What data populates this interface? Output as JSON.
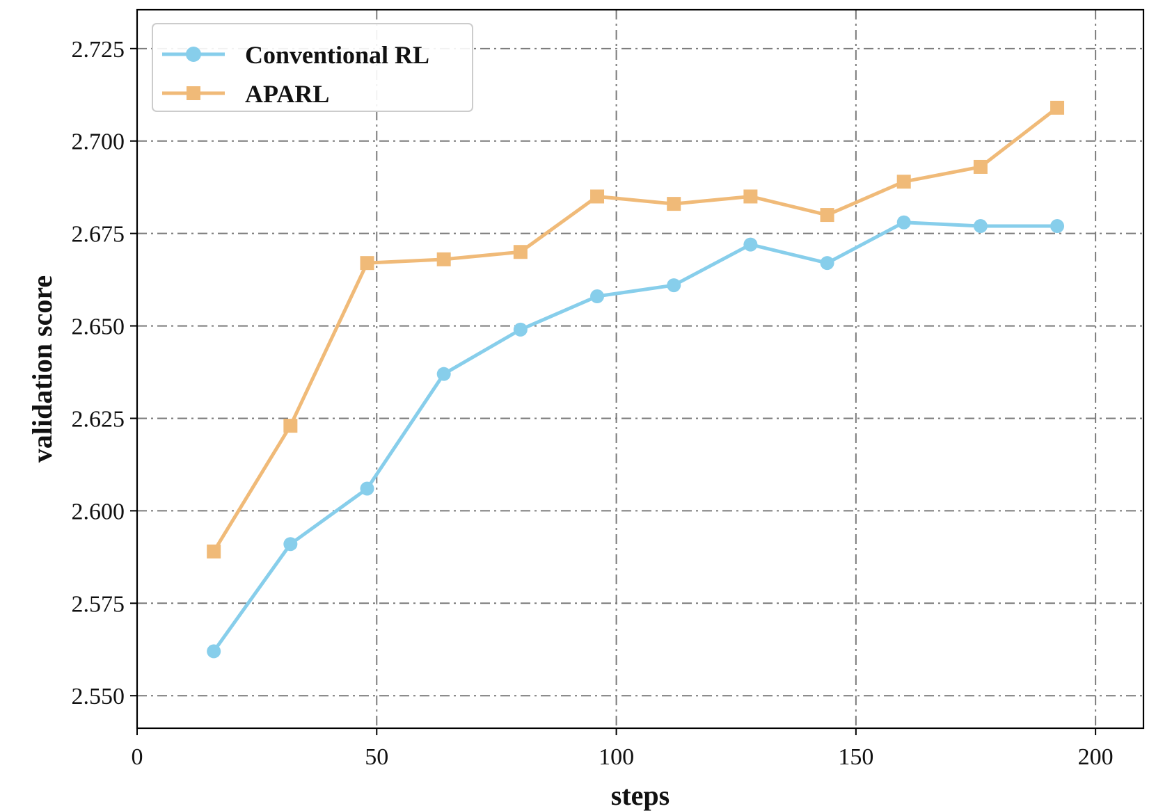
{
  "chart_data": {
    "type": "line",
    "xlabel": "steps",
    "ylabel": "validation score",
    "xlim": [
      0,
      210
    ],
    "ylim": [
      2.5412,
      2.7355
    ],
    "xticks": [
      0,
      50,
      100,
      150,
      200
    ],
    "xtick_labels": [
      "0",
      "50",
      "100",
      "150",
      "200"
    ],
    "yticks": [
      2.55,
      2.575,
      2.6,
      2.625,
      2.65,
      2.675,
      2.7,
      2.725
    ],
    "ytick_labels": [
      "2.550",
      "2.575",
      "2.600",
      "2.625",
      "2.650",
      "2.675",
      "2.700",
      "2.725"
    ],
    "grid": true,
    "legend_position": "top-left",
    "x": [
      16,
      32,
      48,
      64,
      80,
      96,
      112,
      128,
      144,
      160,
      176,
      192
    ],
    "series": [
      {
        "name": "Conventional RL",
        "color": "#87CEEB",
        "marker": "circle",
        "values": [
          2.562,
          2.591,
          2.606,
          2.637,
          2.649,
          2.658,
          2.661,
          2.672,
          2.667,
          2.678,
          2.677,
          2.677
        ]
      },
      {
        "name": "APARL",
        "color": "#F0BA78",
        "marker": "square",
        "values": [
          2.589,
          2.623,
          2.667,
          2.668,
          2.67,
          2.685,
          2.683,
          2.685,
          2.68,
          2.689,
          2.693,
          2.709
        ]
      }
    ]
  }
}
